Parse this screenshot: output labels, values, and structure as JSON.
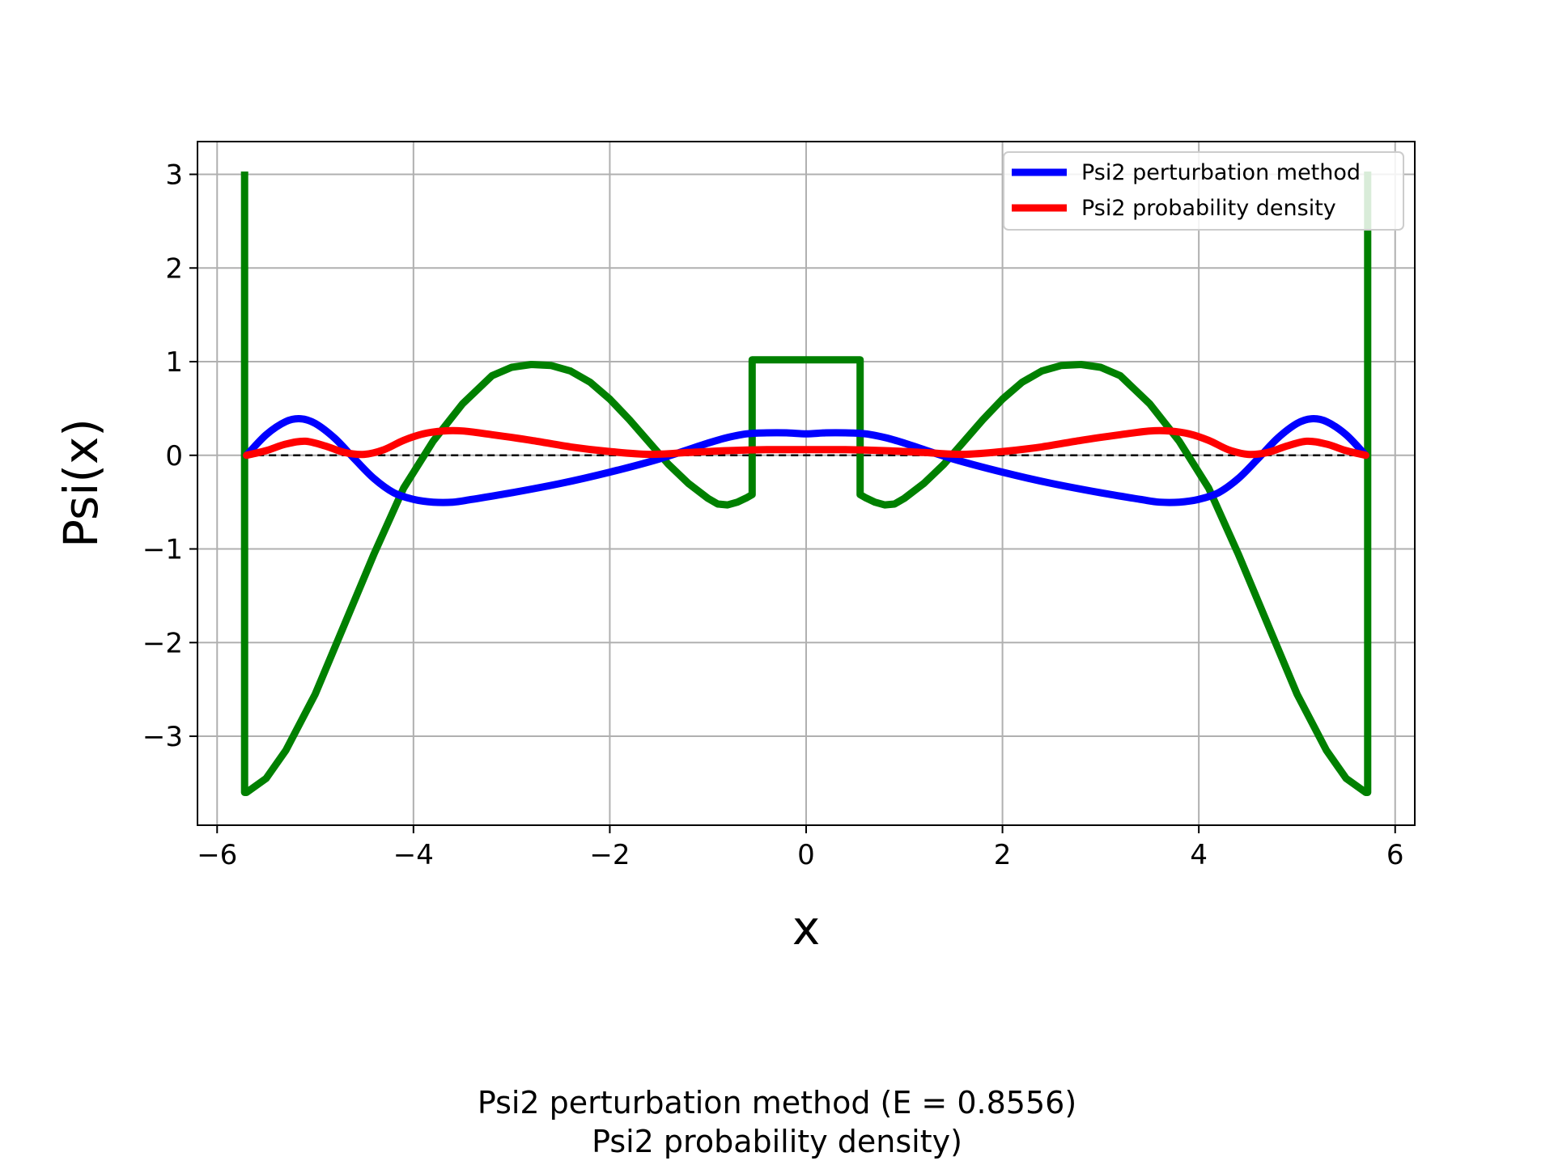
{
  "chart_data": {
    "type": "line",
    "xlabel": "x",
    "ylabel": "Psi(x)",
    "xlim": [
      -6.2,
      6.2
    ],
    "ylim": [
      -3.95,
      3.35
    ],
    "x_ticks": [
      -6,
      -4,
      -2,
      0,
      2,
      4,
      6
    ],
    "y_ticks": [
      -3,
      -2,
      -1,
      0,
      1,
      2,
      3
    ],
    "x_tick_labels": [
      "−6",
      "−4",
      "−2",
      "0",
      "2",
      "4",
      "6"
    ],
    "y_tick_labels": [
      "−3",
      "−2",
      "−1",
      "0",
      "1",
      "2",
      "3"
    ],
    "grid": true,
    "legend_position": "top-right",
    "reference_line": {
      "y": 0,
      "color": "#000000",
      "style": "dashed"
    },
    "series": [
      {
        "name": "Psi2 perturbation method",
        "color": "#0000ff",
        "in_legend": true,
        "x": [
          -5.7,
          -5.5,
          -5.3,
          -5.15,
          -5.0,
          -4.8,
          -4.6,
          -4.4,
          -4.2,
          -4.0,
          -3.8,
          -3.6,
          -3.4,
          -3.0,
          -2.5,
          -2.0,
          -1.5,
          -1.0,
          -0.8,
          -0.6,
          -0.4,
          -0.2,
          0.0,
          0.2,
          0.4,
          0.6,
          0.8,
          1.0,
          1.5,
          2.0,
          2.5,
          3.0,
          3.4,
          3.6,
          3.8,
          4.0,
          4.2,
          4.4,
          4.6,
          4.8,
          5.0,
          5.15,
          5.3,
          5.5,
          5.7
        ],
        "y": [
          0.0,
          0.22,
          0.36,
          0.39,
          0.34,
          0.18,
          -0.04,
          -0.25,
          -0.4,
          -0.47,
          -0.5,
          -0.5,
          -0.47,
          -0.4,
          -0.3,
          -0.18,
          -0.04,
          0.13,
          0.19,
          0.23,
          0.24,
          0.24,
          0.23,
          0.24,
          0.24,
          0.23,
          0.19,
          0.13,
          -0.04,
          -0.18,
          -0.3,
          -0.4,
          -0.47,
          -0.5,
          -0.5,
          -0.47,
          -0.4,
          -0.25,
          -0.04,
          0.18,
          0.34,
          0.39,
          0.36,
          0.22,
          0.0
        ]
      },
      {
        "name": "Psi2 probability density",
        "color": "#ff0000",
        "in_legend": true,
        "x": [
          -5.7,
          -5.5,
          -5.3,
          -5.1,
          -4.9,
          -4.7,
          -4.5,
          -4.3,
          -4.1,
          -3.9,
          -3.7,
          -3.5,
          -3.2,
          -2.8,
          -2.4,
          -2.0,
          -1.6,
          -1.2,
          -0.8,
          -0.4,
          0.0,
          0.4,
          0.8,
          1.2,
          1.6,
          2.0,
          2.4,
          2.8,
          3.2,
          3.5,
          3.7,
          3.9,
          4.1,
          4.3,
          4.5,
          4.7,
          4.9,
          5.1,
          5.3,
          5.5,
          5.7
        ],
        "y": [
          0.0,
          0.05,
          0.12,
          0.15,
          0.1,
          0.03,
          0.01,
          0.06,
          0.16,
          0.23,
          0.26,
          0.26,
          0.22,
          0.16,
          0.09,
          0.04,
          0.01,
          0.03,
          0.05,
          0.06,
          0.06,
          0.06,
          0.05,
          0.03,
          0.01,
          0.04,
          0.09,
          0.16,
          0.22,
          0.26,
          0.26,
          0.23,
          0.16,
          0.06,
          0.01,
          0.03,
          0.1,
          0.15,
          0.12,
          0.05,
          0.0
        ]
      },
      {
        "color": "#008000",
        "in_legend": false,
        "x": [
          -5.72,
          -5.72,
          -5.7,
          -5.5,
          -5.3,
          -5.0,
          -4.7,
          -4.4,
          -4.1,
          -3.8,
          -3.5,
          -3.2,
          -3.0,
          -2.8,
          -2.6,
          -2.4,
          -2.2,
          -2.0,
          -1.8,
          -1.6,
          -1.4,
          -1.2,
          -1.0,
          -0.9,
          -0.8,
          -0.7,
          -0.6,
          -0.55,
          -0.55,
          0.55,
          0.55,
          0.6,
          0.7,
          0.8,
          0.9,
          1.0,
          1.2,
          1.4,
          1.6,
          1.8,
          2.0,
          2.2,
          2.4,
          2.6,
          2.8,
          3.0,
          3.2,
          3.5,
          3.8,
          4.1,
          4.4,
          4.7,
          5.0,
          5.3,
          5.5,
          5.7,
          5.72,
          5.72
        ],
        "y": [
          3.03,
          -3.6,
          -3.6,
          -3.45,
          -3.15,
          -2.55,
          -1.8,
          -1.05,
          -0.35,
          0.15,
          0.55,
          0.85,
          0.94,
          0.97,
          0.96,
          0.9,
          0.78,
          0.6,
          0.38,
          0.14,
          -0.1,
          -0.3,
          -0.46,
          -0.52,
          -0.53,
          -0.5,
          -0.45,
          -0.42,
          1.02,
          1.02,
          -0.42,
          -0.45,
          -0.5,
          -0.53,
          -0.52,
          -0.46,
          -0.3,
          -0.1,
          0.14,
          0.38,
          0.6,
          0.78,
          0.9,
          0.96,
          0.97,
          0.94,
          0.85,
          0.55,
          0.15,
          -0.35,
          -1.05,
          -1.8,
          -2.55,
          -3.15,
          -3.45,
          -3.6,
          -3.6,
          3.03
        ]
      }
    ]
  },
  "caption": {
    "line1": "Psi2 perturbation method (E = 0.8556)",
    "line2": "Psi2 probability density)"
  }
}
